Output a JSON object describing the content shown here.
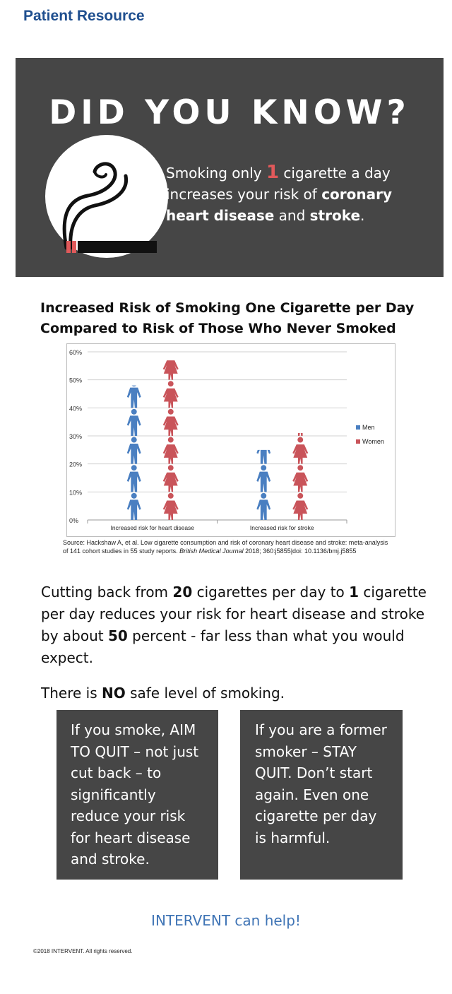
{
  "header": {
    "label": "Patient Resource"
  },
  "banner": {
    "title": "DID YOU KNOW?",
    "text_before": "Smoking only ",
    "highlight_number": "1",
    "text_middle": " cigarette a day increases your risk of ",
    "bold_1": "coronary heart disease",
    "text_and": " and ",
    "bold_2": "stroke",
    "text_end": ".",
    "icon": "no-smoking-icon",
    "highlight_color": "#e0595a"
  },
  "chart_heading": {
    "line1": "Increased Risk of Smoking One Cigarette per Day",
    "line2": "Compared to Risk of Those Who Never Smoked"
  },
  "chart_data": {
    "type": "bar",
    "categories": [
      "Increased risk for heart disease",
      "Increased risk for stroke"
    ],
    "series": [
      {
        "name": "Men",
        "values": [
          48,
          25
        ],
        "color": "#4a7fc1"
      },
      {
        "name": "Women",
        "values": [
          57,
          31
        ],
        "color": "#c9545a"
      }
    ],
    "ylim": [
      0,
      60
    ],
    "yticks": [
      "0%",
      "10%",
      "20%",
      "30%",
      "40%",
      "50%",
      "60%"
    ],
    "grid": true,
    "legend_position": "right",
    "mark_style": "pictograph"
  },
  "source": {
    "text_before": "Source: Hackshaw A, et al. Low cigarette consumption and risk of coronary heart disease and stroke: meta-analysis of 141 cohort studies in 55 study reports. ",
    "journal": "British Medical Journal",
    "text_after": " 2018; 360:j5855|doi: 10.1136/bmj.j5855"
  },
  "paragraph1": {
    "t1": "Cutting back from ",
    "b1": "20",
    "t2": " cigarettes per day to ",
    "b2": "1",
    "t3": " cigarette per day reduces your risk for heart disease and stroke by about ",
    "b3": "50",
    "t4": " percent - far less than what you would expect."
  },
  "paragraph2": {
    "t1": "There is ",
    "b1": "NO",
    "t2": " safe level of smoking."
  },
  "box_left": "If you smoke, AIM TO QUIT – not just cut back – to significantly reduce your risk for heart disease and stroke.",
  "box_right": "If you are a former smoker – STAY QUIT. Don’t start again. Even one cigarette per day is harmful.",
  "help_text": "INTERVENT can help!",
  "copyright": "©2018 INTERVENT. All rights reserved."
}
